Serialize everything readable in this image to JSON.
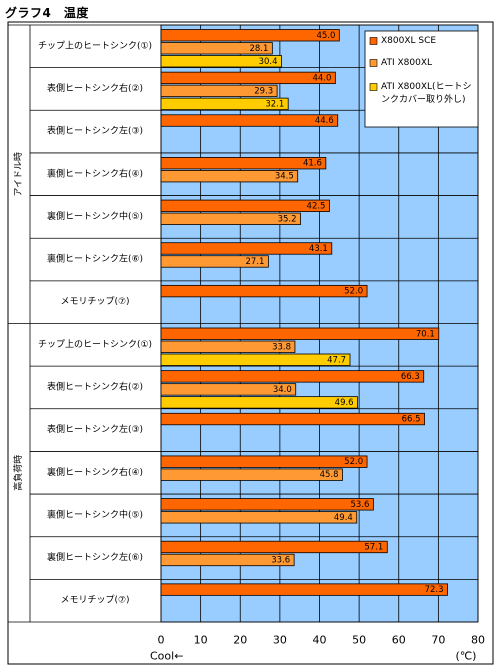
{
  "title": "グラフ4　温度",
  "chart_data": {
    "type": "bar",
    "orientation": "horizontal",
    "title": "グラフ4　温度",
    "xlabel": "Cool←",
    "unit": "(℃)",
    "xlim": [
      0,
      80
    ],
    "xticks": [
      0,
      10,
      20,
      30,
      40,
      50,
      60,
      70,
      80
    ],
    "grid": true,
    "legend_position": "top-right",
    "series": [
      {
        "name": "X800XL SCE",
        "color": "#ff6600"
      },
      {
        "name": "ATI X800XL",
        "color": "#ff9933"
      },
      {
        "name": "ATI X800XL(ヒートシンクカバー取り外し)",
        "color": "#ffcc00"
      }
    ],
    "groups": [
      {
        "name": "アイドル時",
        "rows": [
          {
            "label": "チップ上のヒートシンク(①)",
            "values": [
              45.0,
              28.1,
              30.4
            ]
          },
          {
            "label": "表側ヒートシンク右(②)",
            "values": [
              44.0,
              29.3,
              32.1
            ]
          },
          {
            "label": "表側ヒートシンク左(③)",
            "values": [
              44.6,
              null,
              null
            ]
          },
          {
            "label": "裏側ヒートシンク右(④)",
            "values": [
              41.6,
              34.5,
              null
            ]
          },
          {
            "label": "裏側ヒートシンク中(⑤)",
            "values": [
              42.5,
              35.2,
              null
            ]
          },
          {
            "label": "裏側ヒートシンク左(⑥)",
            "values": [
              43.1,
              27.1,
              null
            ]
          },
          {
            "label": "メモリチップ(⑦)",
            "values": [
              52.0,
              null,
              null
            ]
          }
        ]
      },
      {
        "name": "高負荷時",
        "rows": [
          {
            "label": "チップ上のヒートシンク(①)",
            "values": [
              70.1,
              33.8,
              47.7
            ]
          },
          {
            "label": "表側ヒートシンク右(②)",
            "values": [
              66.3,
              34.0,
              49.6
            ]
          },
          {
            "label": "表側ヒートシンク左(③)",
            "values": [
              66.5,
              null,
              null
            ]
          },
          {
            "label": "裏側ヒートシンク右(④)",
            "values": [
              52.0,
              45.8,
              null
            ]
          },
          {
            "label": "裏側ヒートシンク中(⑤)",
            "values": [
              53.6,
              49.4,
              null
            ]
          },
          {
            "label": "裏側ヒートシンク左(⑥)",
            "values": [
              57.1,
              33.6,
              null
            ]
          },
          {
            "label": "メモリチップ(⑦)",
            "values": [
              72.3,
              null,
              null
            ]
          }
        ]
      }
    ]
  }
}
